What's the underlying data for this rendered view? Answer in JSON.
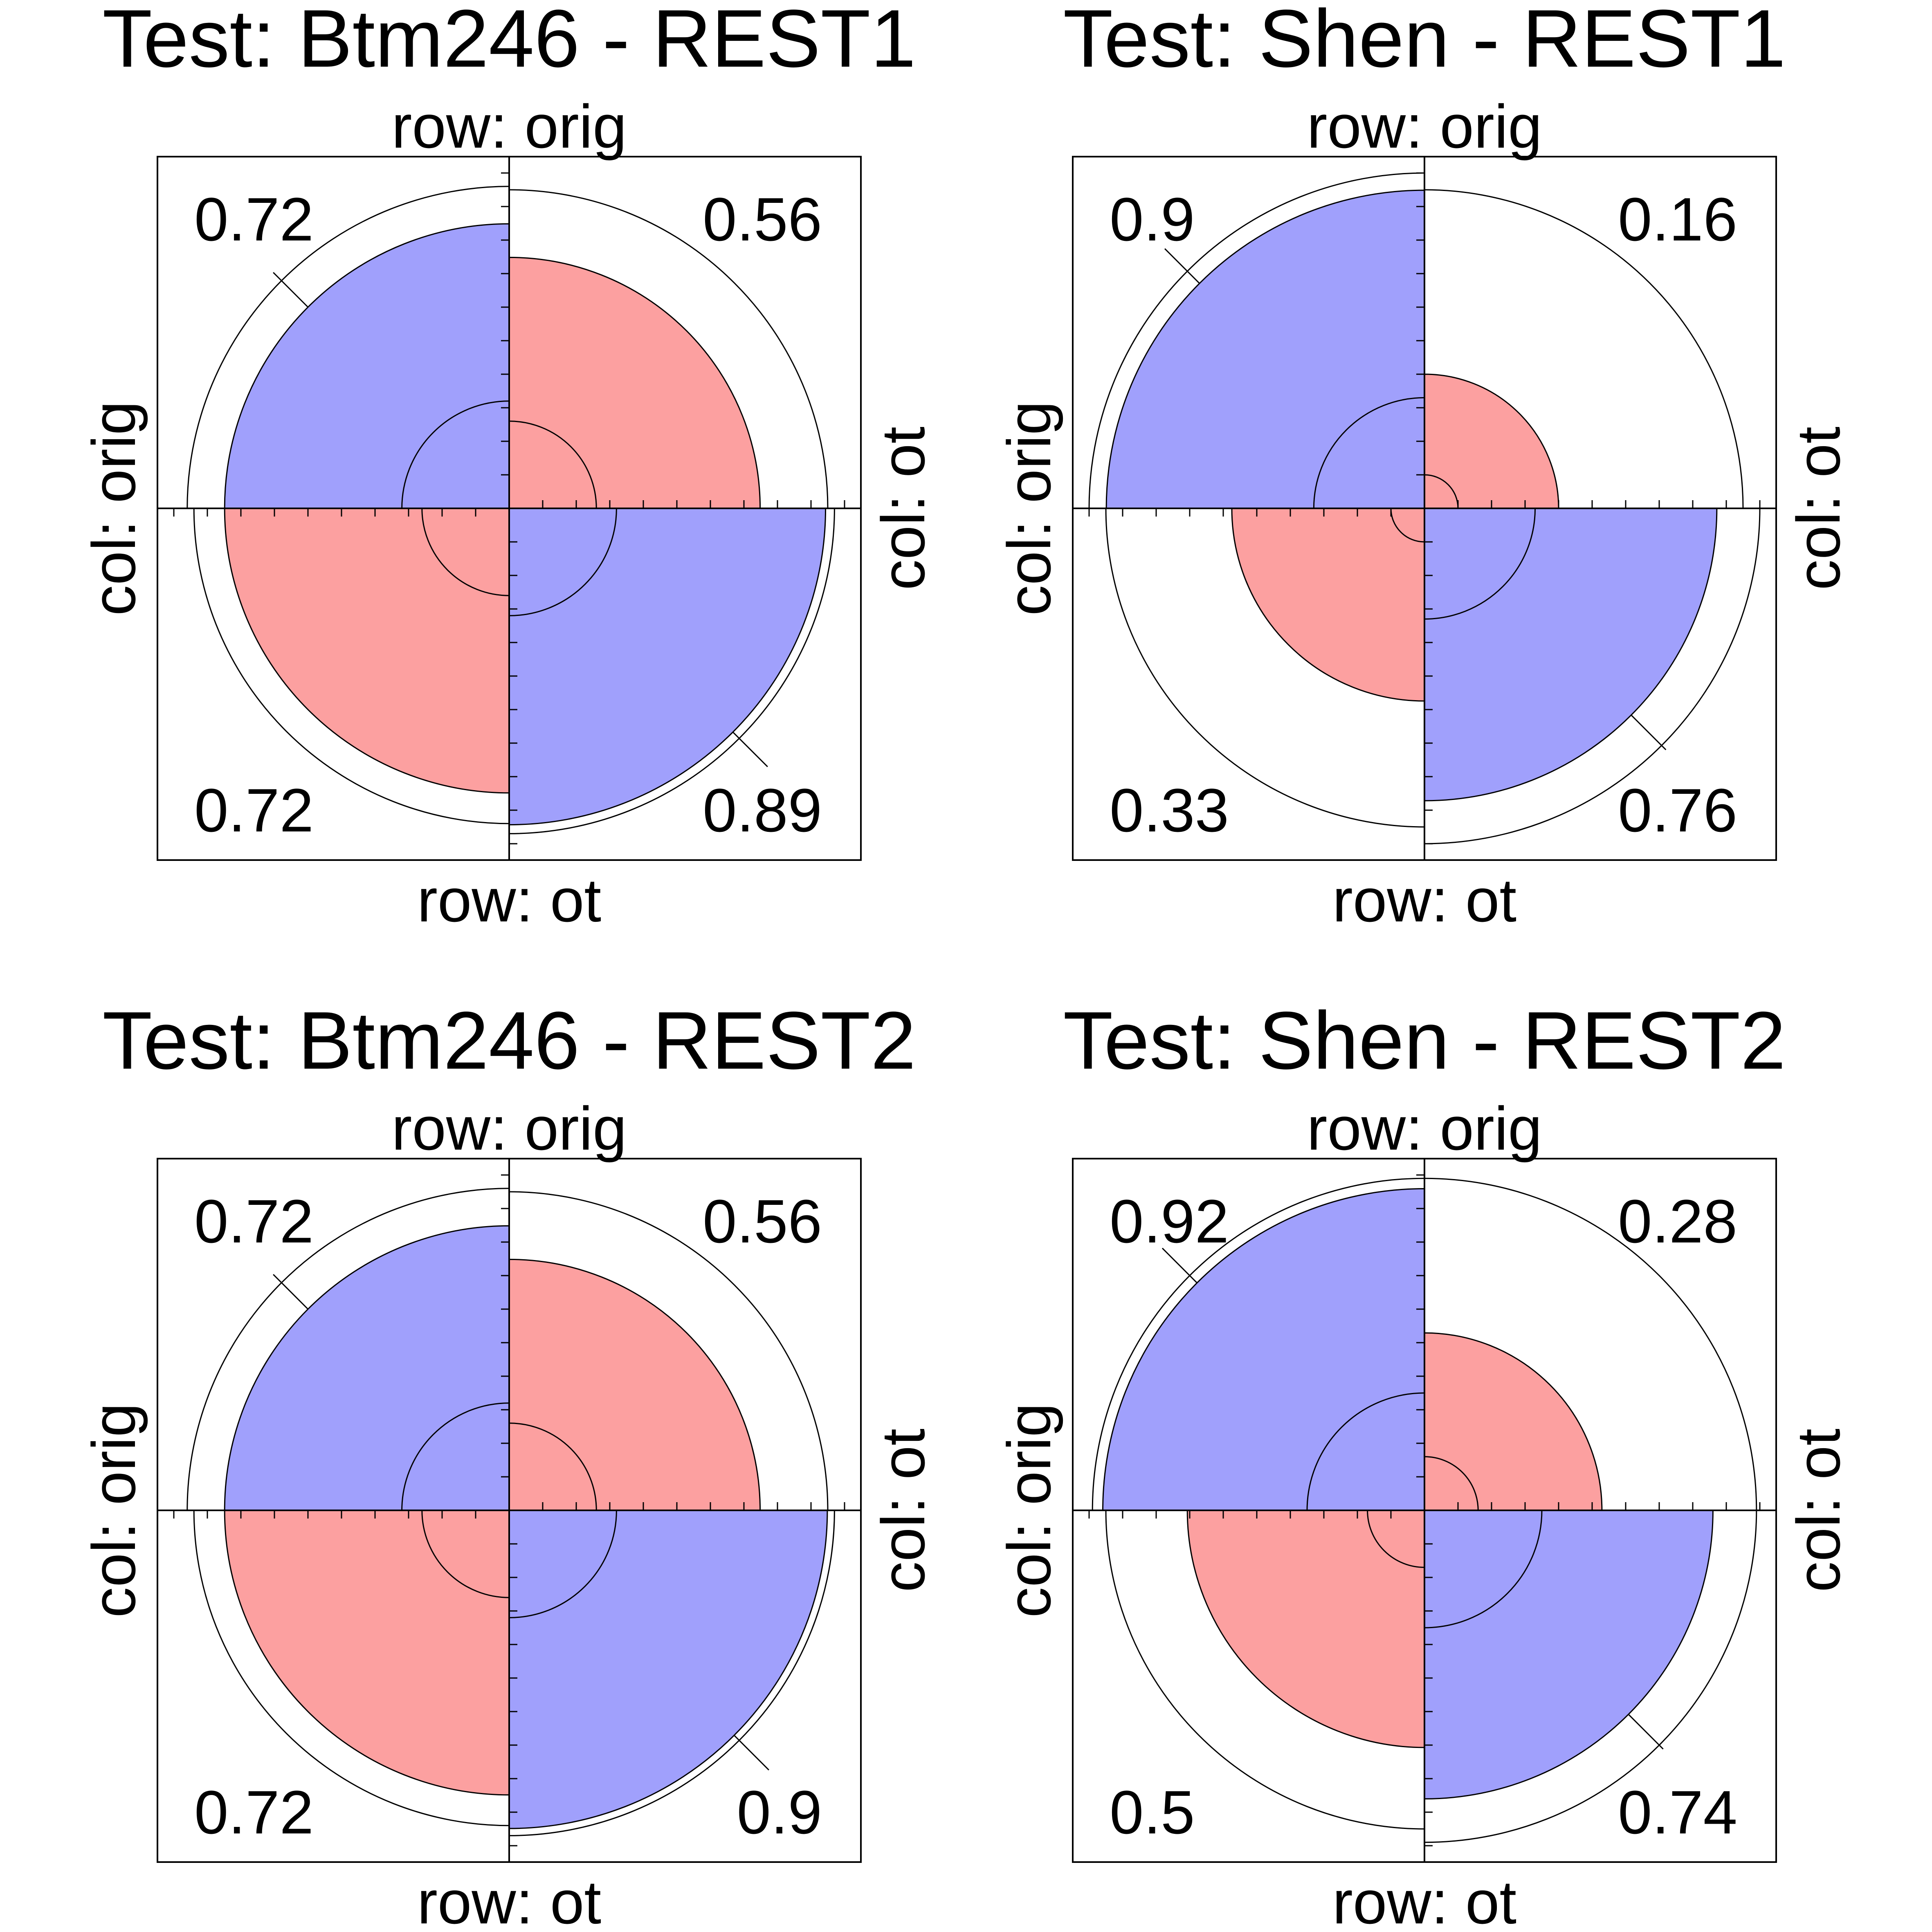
{
  "chart_data": [
    {
      "type": "fourfold",
      "title": "Test: Btm246 - REST1",
      "row_labels": {
        "top": "row: orig",
        "bottom": "row: ot"
      },
      "col_labels": {
        "left": "col: orig",
        "right": "col: ot"
      },
      "cells": {
        "top_left": "0.72",
        "top_right": "0.56",
        "bottom_left": "0.72",
        "bottom_right": "0.89"
      },
      "cell_values": {
        "top_left": 0.72,
        "top_right": 0.56,
        "bottom_left": 0.72,
        "bottom_right": 0.89
      },
      "outer_radius_fraction": {
        "top_left": 0.96,
        "top_right": 0.95,
        "bottom_left": 0.94,
        "bottom_right": 0.97
      },
      "inner_radius_fraction": {
        "top_left": 0.32,
        "top_right": 0.26,
        "bottom_left": 0.26,
        "bottom_right": 0.32
      },
      "colors": {
        "top_left": "#a0a0fc",
        "top_right": "#fca0a0",
        "bottom_left": "#fca0a0",
        "bottom_right": "#a0a0fc"
      }
    },
    {
      "type": "fourfold",
      "title": "Test: Shen - REST1",
      "row_labels": {
        "top": "row: orig",
        "bottom": "row: ot"
      },
      "col_labels": {
        "left": "col: orig",
        "right": "col: ot"
      },
      "cells": {
        "top_left": "0.9",
        "top_right": "0.16",
        "bottom_left": "0.33",
        "bottom_right": "0.76"
      },
      "cell_values": {
        "top_left": 0.9,
        "top_right": 0.16,
        "bottom_left": 0.33,
        "bottom_right": 0.76
      },
      "outer_radius_fraction": {
        "top_left": 1.0,
        "top_right": 0.95,
        "bottom_left": 0.95,
        "bottom_right": 1.0
      },
      "inner_radius_fraction": {
        "top_left": 0.33,
        "top_right": 0.1,
        "bottom_left": 0.1,
        "bottom_right": 0.33
      },
      "colors": {
        "top_left": "#a0a0fc",
        "top_right": "#fca0a0",
        "bottom_left": "#fca0a0",
        "bottom_right": "#a0a0fc"
      }
    },
    {
      "type": "fourfold",
      "title": "Test: Btm246 - REST2",
      "row_labels": {
        "top": "row: orig",
        "bottom": "row: ot"
      },
      "col_labels": {
        "left": "col: orig",
        "right": "col: ot"
      },
      "cells": {
        "top_left": "0.72",
        "top_right": "0.56",
        "bottom_left": "0.72",
        "bottom_right": "0.9"
      },
      "cell_values": {
        "top_left": 0.72,
        "top_right": 0.56,
        "bottom_left": 0.72,
        "bottom_right": 0.9
      },
      "outer_radius_fraction": {
        "top_left": 0.96,
        "top_right": 0.95,
        "bottom_left": 0.94,
        "bottom_right": 0.97
      },
      "inner_radius_fraction": {
        "top_left": 0.32,
        "top_right": 0.26,
        "bottom_left": 0.26,
        "bottom_right": 0.32
      },
      "colors": {
        "top_left": "#a0a0fc",
        "top_right": "#fca0a0",
        "bottom_left": "#fca0a0",
        "bottom_right": "#a0a0fc"
      }
    },
    {
      "type": "fourfold",
      "title": "Test: Shen - REST2",
      "row_labels": {
        "top": "row: orig",
        "bottom": "row: ot"
      },
      "col_labels": {
        "left": "col: orig",
        "right": "col: ot"
      },
      "cells": {
        "top_left": "0.92",
        "top_right": "0.28",
        "bottom_left": "0.5",
        "bottom_right": "0.74"
      },
      "cell_values": {
        "top_left": 0.92,
        "top_right": 0.28,
        "bottom_left": 0.5,
        "bottom_right": 0.74
      },
      "outer_radius_fraction": {
        "top_left": 0.99,
        "top_right": 0.99,
        "bottom_left": 0.95,
        "bottom_right": 0.99
      },
      "inner_radius_fraction": {
        "top_left": 0.35,
        "top_right": 0.16,
        "bottom_left": 0.17,
        "bottom_right": 0.35
      },
      "colors": {
        "top_left": "#a0a0fc",
        "top_right": "#fca0a0",
        "bottom_left": "#fca0a0",
        "bottom_right": "#a0a0fc"
      }
    }
  ]
}
